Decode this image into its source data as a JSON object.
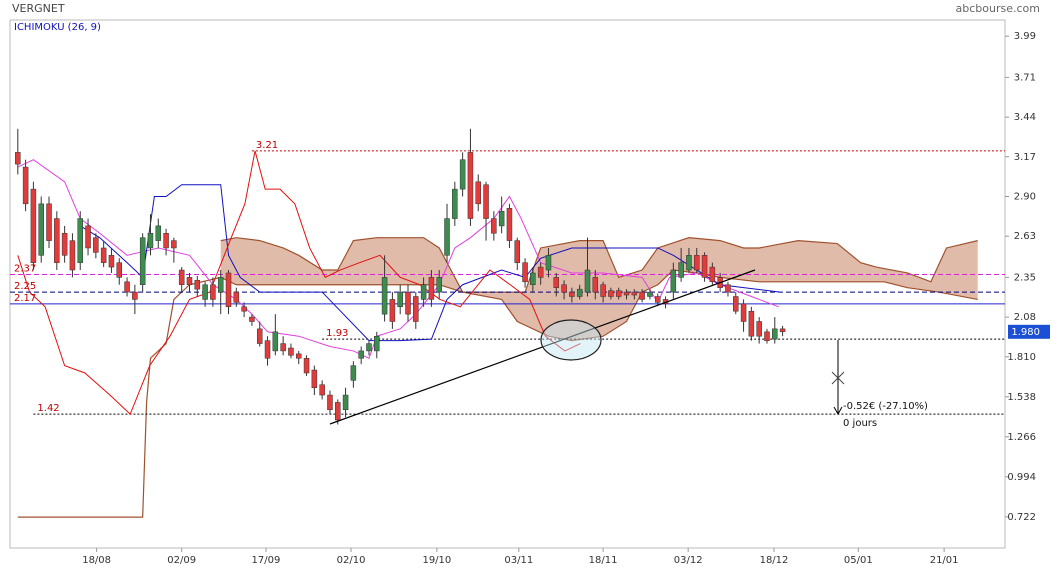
{
  "chart_data": {
    "type": "candlestick",
    "title": "VERGNET",
    "source": "abcbourse.com",
    "indicator": "ICHIMOKU (26, 9)",
    "ylim": [
      0.51,
      4.1
    ],
    "yticks": [
      3.99,
      3.71,
      3.44,
      3.17,
      {
        "value": 2.9,
        "label": "2.90"
      },
      2.63,
      2.35,
      2.08,
      {
        "value": 1.81,
        "label": "1.810"
      },
      1.538,
      1.266,
      0.994,
      0.722
    ],
    "xlim": [
      -1,
      126.5
    ],
    "xticks": [
      {
        "value": 10.1,
        "label": "18/08"
      },
      {
        "value": 21,
        "label": "02/09"
      },
      {
        "value": 31.8,
        "label": "17/09"
      },
      {
        "value": 42.7,
        "label": "02/10"
      },
      {
        "value": 53.7,
        "label": "19/10"
      },
      {
        "value": 64.2,
        "label": "03/11"
      },
      {
        "value": 75,
        "label": "18/11"
      },
      {
        "value": 85.9,
        "label": "03/12"
      },
      {
        "value": 96.9,
        "label": "18/12"
      },
      {
        "value": 107.7,
        "label": "05/01"
      },
      {
        "value": 118.7,
        "label": "21/01"
      }
    ],
    "up_color": "#3d8b4f",
    "down_color": "#e23b3b",
    "ohlc": [
      [
        3.2,
        3.36,
        3.05,
        3.12
      ],
      [
        3.1,
        3.15,
        2.8,
        2.85
      ],
      [
        2.95,
        3.0,
        2.4,
        2.45
      ],
      [
        2.5,
        2.9,
        2.45,
        2.85
      ],
      [
        2.85,
        2.9,
        2.55,
        2.6
      ],
      [
        2.75,
        2.8,
        2.4,
        2.45
      ],
      [
        2.65,
        2.7,
        2.45,
        2.5
      ],
      [
        2.6,
        2.65,
        2.35,
        2.4
      ],
      [
        2.45,
        2.8,
        2.4,
        2.75
      ],
      [
        2.7,
        2.75,
        2.5,
        2.55
      ],
      [
        2.62,
        2.65,
        2.48,
        2.52
      ],
      [
        2.55,
        2.6,
        2.42,
        2.45
      ],
      [
        2.5,
        2.55,
        2.38,
        2.42
      ],
      [
        2.45,
        2.48,
        2.3,
        2.35
      ],
      [
        2.32,
        2.35,
        2.22,
        2.25
      ],
      [
        2.25,
        2.3,
        2.1,
        2.2
      ],
      [
        2.3,
        2.65,
        2.25,
        2.62
      ],
      [
        2.55,
        2.78,
        2.5,
        2.65
      ],
      [
        2.6,
        2.75,
        2.55,
        2.7
      ],
      [
        2.65,
        2.68,
        2.5,
        2.55
      ],
      [
        2.6,
        2.62,
        2.45,
        2.55
      ],
      [
        2.4,
        2.42,
        2.25,
        2.3
      ],
      [
        2.35,
        2.38,
        2.25,
        2.3
      ],
      [
        2.33,
        2.36,
        2.22,
        2.27
      ],
      [
        2.2,
        2.32,
        2.15,
        2.3
      ],
      [
        2.3,
        2.35,
        2.15,
        2.2
      ],
      [
        2.25,
        2.4,
        2.1,
        2.35
      ],
      [
        2.38,
        2.4,
        2.1,
        2.15
      ],
      [
        2.25,
        2.28,
        2.15,
        2.18
      ],
      [
        2.15,
        2.18,
        2.08,
        2.12
      ],
      [
        2.08,
        2.1,
        2.02,
        2.05
      ],
      [
        2.0,
        2.05,
        1.88,
        1.9
      ],
      [
        1.92,
        1.95,
        1.75,
        1.8
      ],
      [
        1.85,
        2.1,
        1.82,
        1.98
      ],
      [
        1.9,
        1.95,
        1.82,
        1.85
      ],
      [
        1.87,
        1.9,
        1.8,
        1.82
      ],
      [
        1.83,
        1.85,
        1.76,
        1.8
      ],
      [
        1.8,
        1.82,
        1.68,
        1.7
      ],
      [
        1.72,
        1.75,
        1.55,
        1.6
      ],
      [
        1.62,
        1.65,
        1.52,
        1.55
      ],
      [
        1.55,
        1.58,
        1.42,
        1.45
      ],
      [
        1.5,
        1.52,
        1.35,
        1.38
      ],
      [
        1.45,
        1.6,
        1.4,
        1.55
      ],
      [
        1.65,
        1.78,
        1.6,
        1.75
      ],
      [
        1.8,
        1.88,
        1.76,
        1.85
      ],
      [
        1.85,
        1.92,
        1.82,
        1.9
      ],
      [
        1.85,
        1.98,
        1.8,
        1.95
      ],
      [
        2.1,
        2.5,
        2.05,
        2.35
      ],
      [
        2.2,
        2.25,
        2.0,
        2.05
      ],
      [
        2.15,
        2.3,
        2.1,
        2.25
      ],
      [
        2.25,
        2.3,
        2.05,
        2.1
      ],
      [
        2.22,
        2.25,
        2.0,
        2.05
      ],
      [
        2.2,
        2.35,
        2.15,
        2.3
      ],
      [
        2.35,
        2.4,
        2.15,
        2.2
      ],
      [
        2.25,
        2.4,
        2.2,
        2.35
      ],
      [
        2.5,
        2.85,
        2.45,
        2.75
      ],
      [
        2.75,
        3.0,
        2.7,
        2.95
      ],
      [
        2.95,
        3.2,
        2.9,
        3.15
      ],
      [
        3.2,
        3.36,
        2.7,
        2.75
      ],
      [
        3.0,
        3.05,
        2.8,
        2.85
      ],
      [
        2.98,
        3.0,
        2.6,
        2.75
      ],
      [
        2.75,
        2.8,
        2.6,
        2.65
      ],
      [
        2.7,
        2.9,
        2.65,
        2.8
      ],
      [
        2.82,
        2.85,
        2.55,
        2.6
      ],
      [
        2.6,
        2.62,
        2.4,
        2.45
      ],
      [
        2.45,
        2.48,
        2.28,
        2.32
      ],
      [
        2.3,
        2.42,
        2.25,
        2.38
      ],
      [
        2.42,
        2.45,
        2.3,
        2.35
      ],
      [
        2.4,
        2.55,
        2.35,
        2.5
      ],
      [
        2.35,
        2.38,
        2.22,
        2.28
      ],
      [
        2.3,
        2.33,
        2.2,
        2.25
      ],
      [
        2.25,
        2.28,
        2.18,
        2.22
      ],
      [
        2.22,
        2.3,
        2.2,
        2.27
      ],
      [
        2.25,
        2.62,
        2.22,
        2.4
      ],
      [
        2.35,
        2.4,
        2.2,
        2.25
      ],
      [
        2.3,
        2.32,
        2.18,
        2.22
      ],
      [
        2.26,
        2.28,
        2.2,
        2.22
      ],
      [
        2.26,
        2.28,
        2.2,
        2.22
      ],
      [
        2.25,
        2.27,
        2.2,
        2.23
      ],
      [
        2.25,
        2.27,
        2.2,
        2.23
      ],
      [
        2.25,
        2.27,
        2.18,
        2.2
      ],
      [
        2.22,
        2.27,
        2.2,
        2.25
      ],
      [
        2.22,
        2.24,
        2.16,
        2.18
      ],
      [
        2.2,
        2.22,
        2.14,
        2.17
      ],
      [
        2.25,
        2.45,
        2.2,
        2.4
      ],
      [
        2.35,
        2.55,
        2.32,
        2.45
      ],
      [
        2.4,
        2.55,
        2.38,
        2.5
      ],
      [
        2.5,
        2.55,
        2.38,
        2.4
      ],
      [
        2.5,
        2.52,
        2.32,
        2.35
      ],
      [
        2.42,
        2.45,
        2.3,
        2.32
      ],
      [
        2.35,
        2.38,
        2.25,
        2.28
      ],
      [
        2.3,
        2.32,
        2.22,
        2.25
      ],
      [
        2.22,
        2.25,
        2.1,
        2.12
      ],
      [
        2.17,
        2.2,
        1.98,
        2.05
      ],
      [
        2.12,
        2.15,
        1.92,
        1.95
      ],
      [
        2.05,
        2.08,
        1.9,
        1.95
      ],
      [
        1.98,
        2.0,
        1.9,
        1.92
      ],
      [
        1.93,
        2.08,
        1.9,
        2.0
      ],
      [
        2.0,
        2.02,
        1.95,
        1.98
      ]
    ],
    "cloud": {
      "fill": "#d9aa94",
      "color": "#a0522d",
      "a": {
        "x": [
          26,
          28,
          31,
          34,
          36,
          39,
          41,
          43,
          46,
          52,
          54,
          57,
          62,
          64,
          68,
          71,
          75,
          78,
          80,
          82,
          84,
          87,
          90,
          95,
          100,
          107,
          111,
          114,
          118,
          123
        ],
        "values": [
          2.6,
          2.62,
          2.6,
          2.55,
          2.5,
          2.4,
          2.4,
          2.6,
          2.62,
          2.62,
          2.55,
          2.25,
          2.2,
          2.05,
          1.95,
          1.92,
          1.95,
          2.05,
          2.25,
          2.3,
          2.4,
          2.38,
          2.35,
          2.32,
          2.32,
          2.32,
          2.32,
          2.28,
          2.25,
          2.2
        ]
      },
      "b": {
        "x": [
          0,
          16,
          16.5,
          17,
          19,
          20,
          22,
          26,
          28,
          38,
          54,
          57,
          62,
          65,
          67,
          72,
          75,
          77,
          80,
          82,
          86,
          90,
          93,
          95,
          100,
          105,
          108,
          110,
          114,
          117,
          119,
          123
        ],
        "values": [
          0.72,
          0.72,
          1.5,
          1.8,
          1.9,
          2.2,
          2.3,
          2.35,
          2.3,
          2.3,
          2.3,
          2.25,
          2.25,
          2.25,
          2.55,
          2.6,
          2.6,
          2.35,
          2.4,
          2.55,
          2.62,
          2.6,
          2.55,
          2.55,
          2.6,
          2.58,
          2.45,
          2.42,
          2.38,
          2.32,
          2.55,
          2.6
        ]
      }
    },
    "series": [
      {
        "color": "#e040e0",
        "x": [
          0,
          2,
          6,
          8,
          10.5,
          14,
          18,
          22,
          25,
          28,
          30,
          32,
          36,
          40,
          43,
          45,
          46,
          49,
          51,
          54,
          56,
          58,
          61,
          63,
          64.5,
          67,
          71,
          75,
          80,
          82,
          83.5,
          87,
          90,
          94,
          97.5
        ],
        "values": [
          3.1,
          3.15,
          3.0,
          2.75,
          2.65,
          2.5,
          2.55,
          2.5,
          2.3,
          2.2,
          2.1,
          1.98,
          1.95,
          1.88,
          1.85,
          1.8,
          1.95,
          2.0,
          2.1,
          2.3,
          2.55,
          2.62,
          2.75,
          2.9,
          2.75,
          2.45,
          2.38,
          2.38,
          2.35,
          2.18,
          2.35,
          2.38,
          2.3,
          2.22,
          2.15
        ]
      },
      {
        "color": "#1010c0",
        "x": [
          8,
          10.5,
          14,
          16,
          17.5,
          19,
          21,
          26,
          27,
          28.5,
          31,
          39,
          45,
          49,
          53,
          55,
          57,
          62,
          65,
          67,
          71,
          82,
          84,
          87,
          90,
          97.7
        ],
        "values": [
          2.7,
          2.62,
          2.45,
          2.35,
          2.9,
          2.9,
          2.98,
          2.98,
          2.5,
          2.35,
          2.25,
          2.25,
          1.92,
          1.92,
          1.93,
          2.2,
          2.3,
          2.4,
          2.35,
          2.48,
          2.55,
          2.55,
          2.5,
          2.4,
          2.3,
          2.25
        ]
      },
      {
        "color": "#e01010",
        "x": [
          0,
          1.5,
          3.5,
          6,
          8.6,
          11.8,
          14.4,
          16.9,
          19.5,
          22,
          24.6,
          27.2,
          29.1,
          30.4,
          31.7,
          33.6,
          35.5,
          37.4,
          39.4,
          41.3,
          43.8,
          46.4,
          49,
          51.5,
          54.1,
          56.7,
          60.5,
          63.1,
          65.6,
          67.6,
          70.1,
          72.1
        ],
        "values": [
          2.5,
          2.25,
          2.15,
          1.75,
          1.7,
          1.55,
          1.42,
          1.75,
          1.95,
          2.2,
          2.25,
          2.6,
          2.85,
          3.21,
          2.95,
          2.95,
          2.85,
          2.55,
          2.35,
          2.4,
          2.45,
          2.5,
          2.35,
          2.3,
          2.2,
          2.15,
          2.4,
          2.3,
          2.2,
          1.95,
          1.85,
          1.9
        ]
      }
    ],
    "levels": [
      {
        "value": 3.21,
        "from": 30,
        "color": "#c00000",
        "style": "dotted"
      },
      {
        "value": 2.37,
        "from": -1,
        "color": "#e020e0",
        "style": "dashed"
      },
      {
        "value": 2.25,
        "from": -1,
        "color": "#000080",
        "style": "dashed"
      },
      {
        "value": 2.17,
        "from": -1,
        "color": "#2020d0",
        "style": "solid"
      },
      {
        "value": 1.93,
        "from": 39,
        "color": "#000000",
        "style": "dotted"
      },
      {
        "value": 1.42,
        "from": 2,
        "color": "#000000",
        "style": "dotted"
      }
    ],
    "level_label_color": "#c00000",
    "last": {
      "value": 1.98,
      "label": "1.980",
      "color": "#1a4fd6"
    },
    "change": "-0.52€ (-27.10%)",
    "duration": "0 jours"
  }
}
